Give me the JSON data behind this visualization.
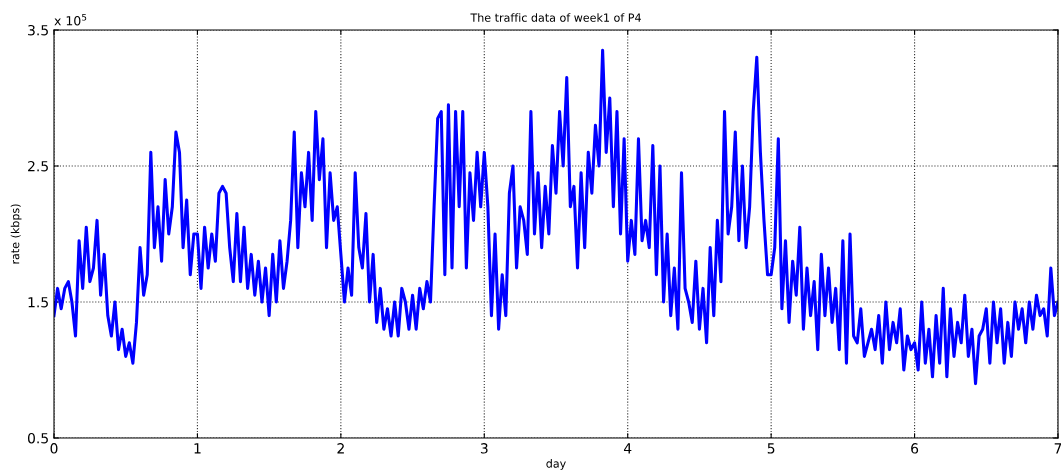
{
  "chart_data": {
    "type": "line",
    "title": "The traffic data of week1 of P4",
    "xlabel": "day",
    "ylabel": "rate (kbps)",
    "annotations": [
      "x 10$^{5}$"
    ],
    "x": [
      0,
      0.025,
      0.05,
      0.075,
      0.1,
      0.125,
      0.15,
      0.175,
      0.2,
      0.225,
      0.25,
      0.275,
      0.3,
      0.325,
      0.35,
      0.375,
      0.4,
      0.425,
      0.45,
      0.475,
      0.5,
      0.525,
      0.55,
      0.575,
      0.6,
      0.625,
      0.65,
      0.675,
      0.7,
      0.725,
      0.75,
      0.775,
      0.8,
      0.825,
      0.85,
      0.875,
      0.9,
      0.925,
      0.95,
      0.975,
      1,
      1.025,
      1.05,
      1.075,
      1.1,
      1.125,
      1.15,
      1.175,
      1.2,
      1.225,
      1.25,
      1.275,
      1.3,
      1.325,
      1.35,
      1.375,
      1.4,
      1.425,
      1.45,
      1.475,
      1.5,
      1.525,
      1.55,
      1.575,
      1.6,
      1.625,
      1.65,
      1.675,
      1.7,
      1.725,
      1.75,
      1.775,
      1.8,
      1.825,
      1.85,
      1.875,
      1.9,
      1.925,
      1.95,
      1.975,
      2,
      2.025,
      2.05,
      2.075,
      2.1,
      2.125,
      2.15,
      2.175,
      2.2,
      2.225,
      2.25,
      2.275,
      2.3,
      2.325,
      2.35,
      2.375,
      2.4,
      2.425,
      2.45,
      2.475,
      2.5,
      2.525,
      2.55,
      2.575,
      2.6,
      2.625,
      2.65,
      2.675,
      2.7,
      2.725,
      2.75,
      2.775,
      2.8,
      2.825,
      2.85,
      2.875,
      2.9,
      2.925,
      2.95,
      2.975,
      3,
      3.025,
      3.05,
      3.075,
      3.1,
      3.125,
      3.15,
      3.175,
      3.2,
      3.225,
      3.25,
      3.275,
      3.3,
      3.325,
      3.35,
      3.375,
      3.4,
      3.425,
      3.45,
      3.475,
      3.5,
      3.525,
      3.55,
      3.575,
      3.6,
      3.625,
      3.65,
      3.675,
      3.7,
      3.725,
      3.75,
      3.775,
      3.8,
      3.825,
      3.85,
      3.875,
      3.9,
      3.925,
      3.95,
      3.975,
      4,
      4.025,
      4.05,
      4.075,
      4.1,
      4.125,
      4.15,
      4.175,
      4.2,
      4.225,
      4.25,
      4.275,
      4.3,
      4.325,
      4.35,
      4.375,
      4.4,
      4.425,
      4.45,
      4.475,
      4.5,
      4.525,
      4.55,
      4.575,
      4.6,
      4.625,
      4.65,
      4.675,
      4.7,
      4.725,
      4.75,
      4.775,
      4.8,
      4.825,
      4.85,
      4.875,
      4.9,
      4.925,
      4.95,
      4.975,
      5,
      5.025,
      5.05,
      5.075,
      5.1,
      5.125,
      5.15,
      5.175,
      5.2,
      5.225,
      5.25,
      5.275,
      5.3,
      5.325,
      5.35,
      5.375,
      5.4,
      5.425,
      5.45,
      5.475,
      5.5,
      5.525,
      5.55,
      5.575,
      5.6,
      5.625,
      5.65,
      5.675,
      5.7,
      5.725,
      5.75,
      5.775,
      5.8,
      5.825,
      5.85,
      5.875,
      5.9,
      5.925,
      5.95,
      5.975,
      6,
      6.025,
      6.05,
      6.075,
      6.1,
      6.125,
      6.15,
      6.175,
      6.2,
      6.225,
      6.25,
      6.275,
      6.3,
      6.325,
      6.35,
      6.375,
      6.4,
      6.425,
      6.45,
      6.475,
      6.5,
      6.525,
      6.55,
      6.575,
      6.6,
      6.625,
      6.65,
      6.675,
      6.7,
      6.725,
      6.75,
      6.775,
      6.8,
      6.825,
      6.85,
      6.875,
      6.9,
      6.925,
      6.95,
      6.975,
      7
    ],
    "series": [
      {
        "color": "#0000ff",
        "values": [
          1.4,
          1.6,
          1.45,
          1.6,
          1.65,
          1.5,
          1.25,
          1.95,
          1.6,
          2.05,
          1.65,
          1.75,
          2.1,
          1.55,
          1.85,
          1.4,
          1.25,
          1.5,
          1.15,
          1.3,
          1.1,
          1.2,
          1.05,
          1.35,
          1.9,
          1.55,
          1.7,
          2.6,
          1.9,
          2.2,
          1.8,
          2.4,
          2.0,
          2.2,
          2.75,
          2.6,
          1.9,
          2.25,
          1.7,
          2.0,
          2.0,
          1.6,
          2.05,
          1.75,
          2.0,
          1.8,
          2.3,
          2.35,
          2.3,
          1.9,
          1.65,
          2.15,
          1.65,
          2.05,
          1.6,
          1.85,
          1.55,
          1.8,
          1.5,
          1.75,
          1.4,
          1.85,
          1.5,
          1.95,
          1.6,
          1.8,
          2.1,
          2.75,
          1.9,
          2.45,
          2.2,
          2.6,
          2.1,
          2.9,
          2.4,
          2.7,
          1.9,
          2.45,
          2.1,
          2.2,
          1.85,
          1.5,
          1.75,
          1.55,
          2.45,
          1.9,
          1.75,
          2.15,
          1.5,
          1.85,
          1.35,
          1.6,
          1.3,
          1.45,
          1.25,
          1.5,
          1.25,
          1.6,
          1.5,
          1.3,
          1.55,
          1.3,
          1.6,
          1.45,
          1.65,
          1.5,
          2.2,
          2.85,
          2.9,
          1.7,
          2.95,
          1.75,
          2.9,
          2.2,
          2.9,
          1.75,
          2.45,
          2.1,
          2.6,
          2.2,
          2.6,
          2.2,
          1.4,
          2.0,
          1.3,
          1.7,
          1.4,
          2.3,
          2.5,
          1.75,
          2.2,
          2.1,
          1.85,
          2.9,
          2.0,
          2.45,
          1.9,
          2.35,
          2.0,
          2.65,
          2.3,
          2.9,
          2.5,
          3.15,
          2.2,
          2.35,
          1.75,
          2.45,
          1.9,
          2.6,
          2.3,
          2.8,
          2.5,
          3.35,
          2.6,
          3.0,
          2.2,
          2.9,
          2.0,
          2.7,
          1.8,
          2.1,
          1.85,
          2.7,
          1.95,
          2.1,
          1.9,
          2.65,
          1.7,
          2.5,
          1.5,
          2.0,
          1.4,
          1.75,
          1.3,
          2.45,
          1.6,
          1.5,
          1.35,
          1.8,
          1.3,
          1.6,
          1.2,
          1.9,
          1.4,
          2.1,
          1.65,
          2.9,
          2.0,
          2.2,
          2.75,
          1.95,
          2.5,
          1.9,
          2.2,
          2.9,
          3.3,
          2.6,
          2.1,
          1.7,
          1.7,
          1.9,
          2.7,
          1.45,
          1.95,
          1.35,
          1.8,
          1.55,
          2.05,
          1.3,
          1.75,
          1.4,
          1.65,
          1.15,
          1.85,
          1.4,
          1.75,
          1.35,
          1.6,
          1.15,
          1.95,
          1.05,
          2.0,
          1.25,
          1.2,
          1.45,
          1.1,
          1.2,
          1.3,
          1.15,
          1.4,
          1.05,
          1.5,
          1.15,
          1.35,
          1.2,
          1.45,
          1.0,
          1.25,
          1.15,
          1.2,
          1.0,
          1.5,
          1.05,
          1.3,
          0.95,
          1.4,
          1.05,
          1.6,
          0.95,
          1.45,
          1.1,
          1.35,
          1.2,
          1.55,
          1.1,
          1.3,
          0.9,
          1.25,
          1.3,
          1.45,
          1.05,
          1.5,
          1.2,
          1.45,
          1.05,
          1.35,
          1.1,
          1.5,
          1.3,
          1.45,
          1.2,
          1.5,
          1.3,
          1.55,
          1.4,
          1.45,
          1.25,
          1.75,
          1.4,
          1.5
        ]
      }
    ],
    "xlim": [
      0,
      7
    ],
    "xticks": [
      0,
      1,
      2,
      3,
      4,
      5,
      6,
      7
    ],
    "ylim": [
      0.5,
      3.5
    ],
    "yticks": [
      0.5,
      1.5,
      2.5,
      3.5
    ],
    "grid": true,
    "line_style": "solid"
  }
}
